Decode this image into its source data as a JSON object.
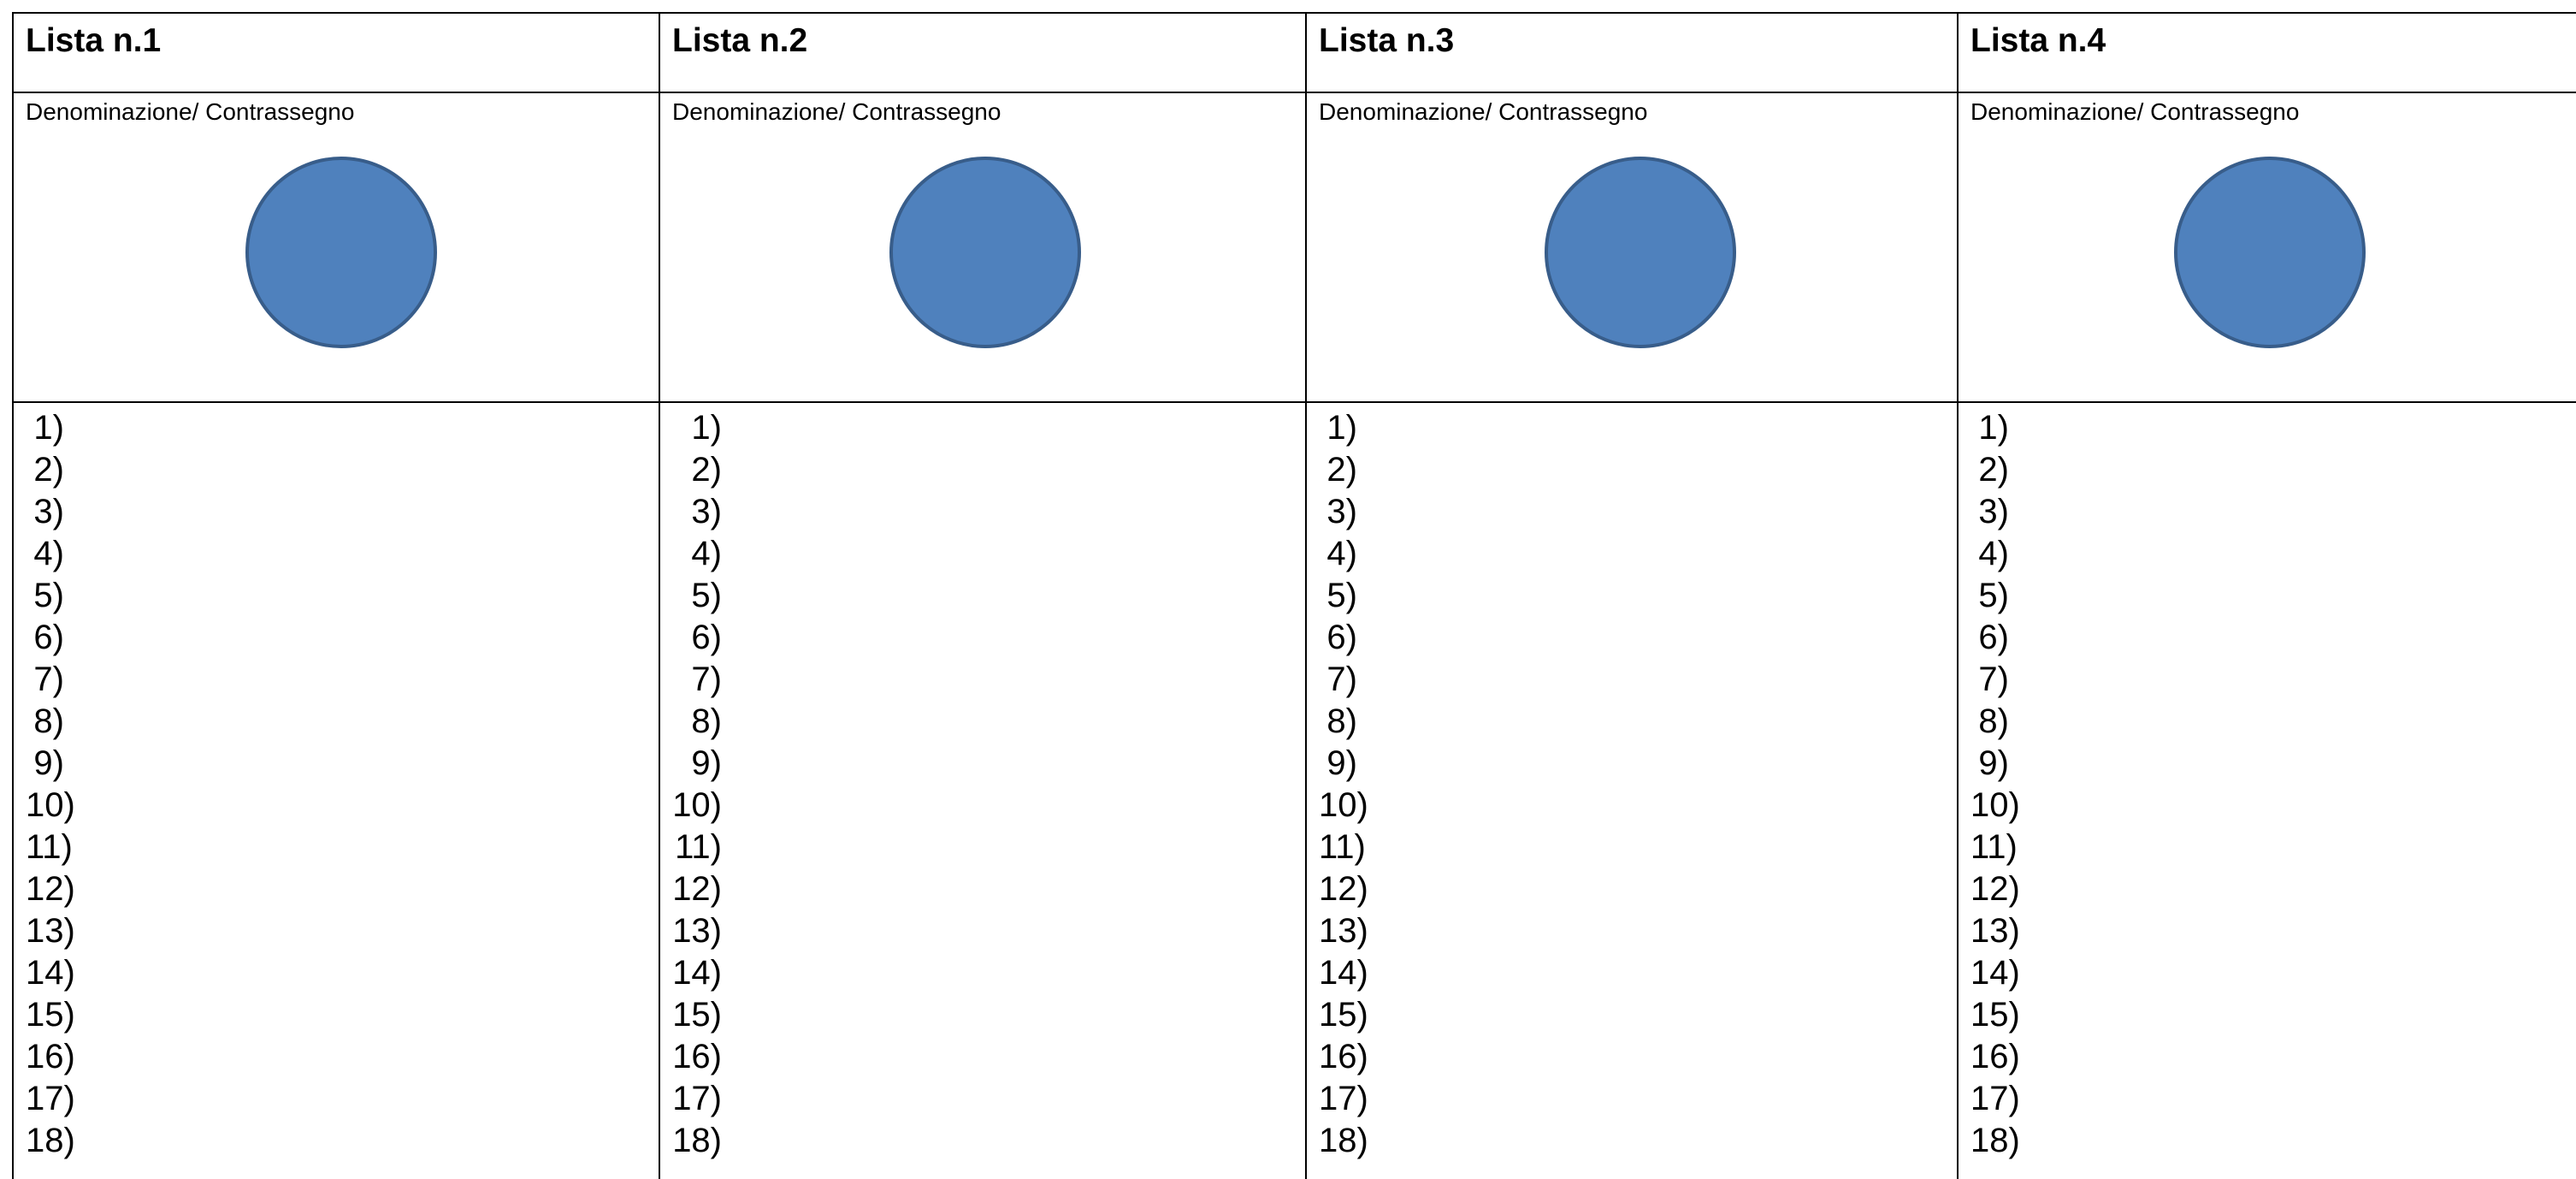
{
  "colors": {
    "circle_fill": "#4f81bd",
    "circle_stroke": "#385d8a",
    "grid_lines": "#000000"
  },
  "lists": [
    {
      "title": "Lista n.1",
      "denomination_label": "Denominazione/ Contrassegno",
      "candidates": [
        "1)",
        "2)",
        "3)",
        "4)",
        "5)",
        "6)",
        "7)",
        "8)",
        "9)",
        "10)",
        "11)",
        "12)",
        "13)",
        "14)",
        "15)",
        "16)",
        "17)",
        "18)"
      ]
    },
    {
      "title": "Lista n.2",
      "denomination_label": "Denominazione/ Contrassegno",
      "candidates": [
        "1)",
        "2)",
        "3)",
        "4)",
        "5)",
        "6)",
        "7)",
        "8)",
        "9)",
        "10)",
        "11)",
        "12)",
        "13)",
        "14)",
        "15)",
        "16)",
        "17)",
        "18)"
      ]
    },
    {
      "title": "Lista n.3",
      "denomination_label": "Denominazione/ Contrassegno",
      "candidates": [
        "1)",
        "2)",
        "3)",
        "4)",
        "5)",
        "6)",
        "7)",
        "8)",
        "9)",
        "10)",
        "11)",
        "12)",
        "13)",
        "14)",
        "15)",
        "16)",
        "17)",
        "18)"
      ]
    },
    {
      "title": "Lista n.4",
      "denomination_label": "Denominazione/ Contrassegno",
      "candidates": [
        "1)",
        "2)",
        "3)",
        "4)",
        "5)",
        "6)",
        "7)",
        "8)",
        "9)",
        "10)",
        "11)",
        "12)",
        "13)",
        "14)",
        "15)",
        "16)",
        "17)",
        "18)"
      ]
    }
  ]
}
